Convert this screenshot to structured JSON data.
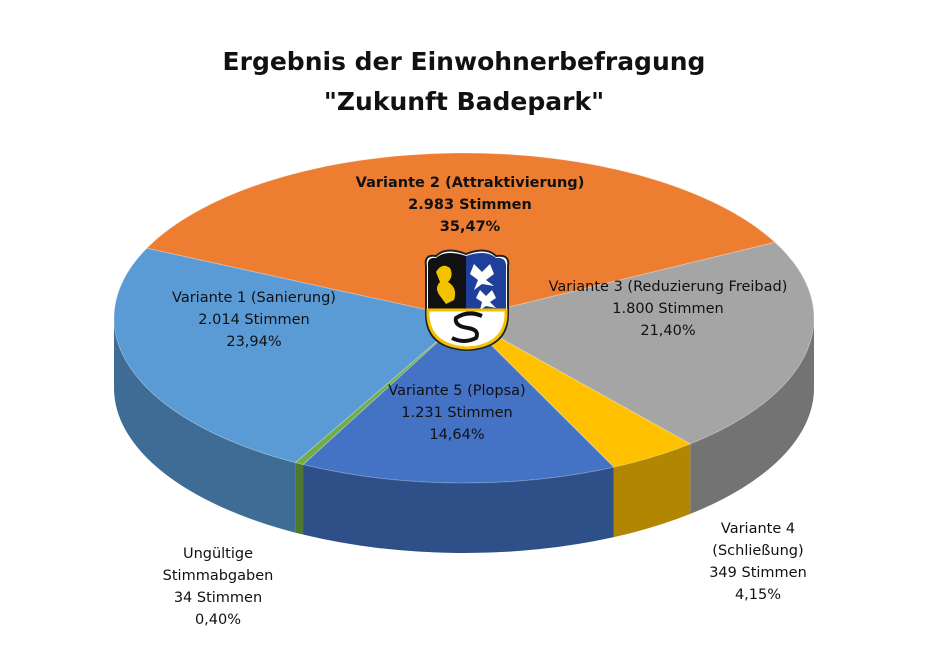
{
  "chart_data": {
    "type": "pie",
    "title": "Ergebnis der Einwohnerbefragung",
    "subtitle": "\"Zukunft Badepark\"",
    "categories": [
      "Variante 2 (Attraktivierung)",
      "Variante 3 (Reduzierung Freibad)",
      "Variante 4 (Schließung)",
      "Variante 5 (Plopsa)",
      "Ungültige Stimmabgaben",
      "Variante 1 (Sanierung)"
    ],
    "values": [
      35.47,
      21.4,
      4.15,
      14.64,
      0.4,
      23.94
    ],
    "value_labels": [
      "35,47%",
      "21,40%",
      "4,15%",
      "14,64%",
      "0,40%",
      "23,94%"
    ],
    "counts": [
      2983,
      1800,
      349,
      1231,
      34,
      2014
    ],
    "count_labels": [
      "2.983 Stimmen",
      "1.800 Stimmen",
      "349 Stimmen",
      "1.231 Stimmen",
      "34 Stimmen",
      "2.014 Stimmen"
    ],
    "colors": [
      "#ED7D31",
      "#A5A5A5",
      "#FFC000",
      "#4472C4",
      "#70AD47",
      "#5B9BD5"
    ]
  }
}
